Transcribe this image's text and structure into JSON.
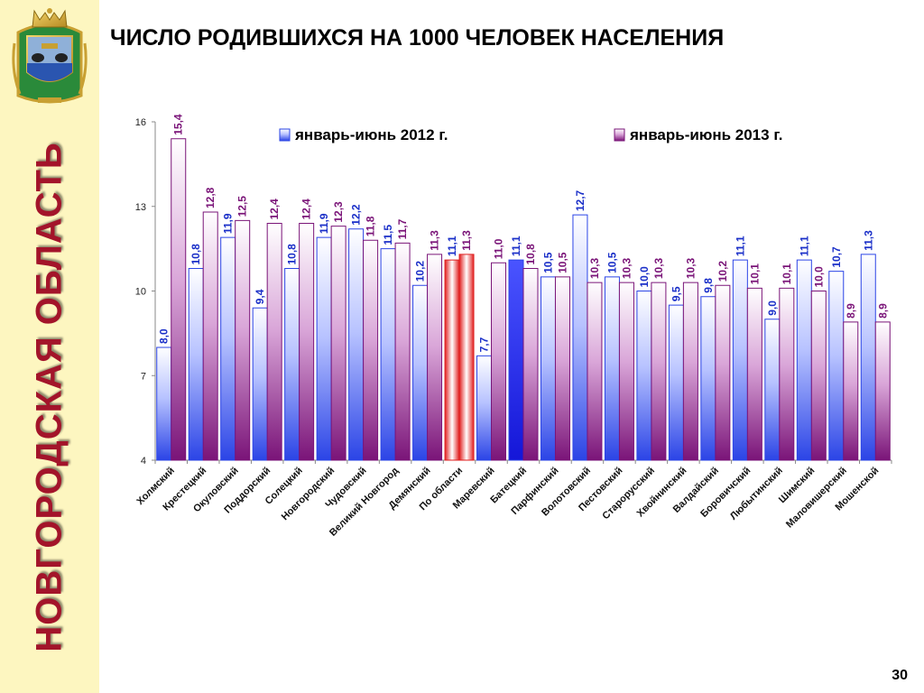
{
  "sidebar": {
    "vertical_title": "НОВГОРОДСКАЯ ОБЛАСТЬ",
    "emblem_icon": "novgorod-coat-of-arms-icon"
  },
  "header": {
    "title": "ЧИСЛО РОДИВШИХСЯ НА 1000 ЧЕЛОВЕК НАСЕЛЕНИЯ"
  },
  "footer": {
    "page_number": "30"
  },
  "colors": {
    "series_2012": "#2b44e6",
    "series_2013": "#7a1478",
    "highlight_2012": "#1a1ee8",
    "highlight_total": "#e02020",
    "sidebar_bg": "#fdf6c0",
    "title_red": "#a3142a"
  },
  "chart_data": {
    "type": "bar",
    "title": "ЧИСЛО РОДИВШИХСЯ НА 1000 ЧЕЛОВЕК НАСЕЛЕНИЯ",
    "xlabel": "",
    "ylabel": "",
    "ylim": [
      4,
      16
    ],
    "yticks": [
      "4",
      "7",
      "10",
      "13",
      "16"
    ],
    "grid": false,
    "legend_position": "top",
    "categories": [
      "Холмский",
      "Крестецкий",
      "Окуловский",
      "Поддорский",
      "Солецкий",
      "Новгородский",
      "Чудовский",
      "Великий Новгород",
      "Демянский",
      "По области",
      "Маревский",
      "Батецкий",
      "Парфинский",
      "Волотовский",
      "Пестовский",
      "Старорусский",
      "Хвойнинский",
      "Валдайский",
      "Боровичский",
      "Любытинский",
      "Шимский",
      "Маловишерский",
      "Мошенской"
    ],
    "series": [
      {
        "name": "январь-июнь 2012 г.",
        "values": [
          8.0,
          10.8,
          11.9,
          9.4,
          10.8,
          11.9,
          12.2,
          11.5,
          10.2,
          11.1,
          7.7,
          11.1,
          10.5,
          12.7,
          10.5,
          10.0,
          9.5,
          9.8,
          11.1,
          9.0,
          11.1,
          10.7,
          11.3
        ],
        "labels": [
          "8,0",
          "10,8",
          "11,9",
          "9,4",
          "10,8",
          "11,9",
          "12,2",
          "11,5",
          "10,2",
          "11,1",
          "7,7",
          "11,1",
          "10,5",
          "12,7",
          "10,5",
          "10,0",
          "9,5",
          "9,8",
          "11,1",
          "9,0",
          "11,1",
          "10,7",
          "11,3"
        ]
      },
      {
        "name": "январь-июнь 2013 г.",
        "values": [
          15.4,
          12.8,
          12.5,
          12.4,
          12.4,
          12.3,
          11.8,
          11.7,
          11.3,
          11.3,
          11.0,
          10.8,
          10.5,
          10.3,
          10.3,
          10.3,
          10.3,
          10.2,
          10.1,
          10.1,
          10.0,
          8.9,
          8.9
        ],
        "labels": [
          "15,4",
          "12,8",
          "12,5",
          "12,4",
          "12,4",
          "12,3",
          "11,8",
          "11,7",
          "11,3",
          "11,3",
          "11,0",
          "10,8",
          "10,5",
          "10,3",
          "10,3",
          "10,3",
          "10,3",
          "10,2",
          "10,1",
          "10,1",
          "10,0",
          "8,9",
          "8,9"
        ]
      }
    ],
    "highlight_total_category": "По области",
    "highlight_2012_category": "Батецкий"
  }
}
